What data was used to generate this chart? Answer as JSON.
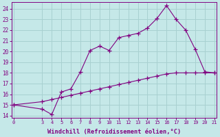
{
  "xlabel": "Windchill (Refroidissement éolien,°C)",
  "background_color": "#c5e8e8",
  "grid_color": "#a8d0d0",
  "line_color": "#800080",
  "x_ticks": [
    0,
    3,
    4,
    5,
    6,
    7,
    8,
    9,
    10,
    11,
    12,
    13,
    14,
    15,
    16,
    17,
    18,
    19,
    20,
    21
  ],
  "ylim": [
    13.8,
    24.6
  ],
  "xlim": [
    -0.2,
    21.2
  ],
  "yticks": [
    14,
    15,
    16,
    17,
    18,
    19,
    20,
    21,
    22,
    23,
    24
  ],
  "line1_x": [
    0,
    3,
    4,
    5,
    6,
    7,
    8,
    9,
    10,
    11,
    12,
    13,
    14,
    15,
    16,
    17,
    18,
    19,
    20,
    21
  ],
  "line1_y": [
    15.0,
    14.6,
    14.1,
    16.2,
    16.5,
    18.1,
    20.1,
    20.5,
    20.1,
    21.3,
    21.5,
    21.7,
    22.2,
    23.1,
    24.3,
    23.0,
    22.0,
    20.2,
    18.1,
    18.0
  ],
  "line2_x": [
    0,
    3,
    4,
    5,
    6,
    7,
    8,
    9,
    10,
    11,
    12,
    13,
    14,
    15,
    16,
    17,
    18,
    19,
    20,
    21
  ],
  "line2_y": [
    15.0,
    15.3,
    15.5,
    15.7,
    15.9,
    16.1,
    16.3,
    16.5,
    16.7,
    16.9,
    17.1,
    17.3,
    17.5,
    17.7,
    17.9,
    18.0,
    18.0,
    18.0,
    18.0,
    18.0
  ]
}
